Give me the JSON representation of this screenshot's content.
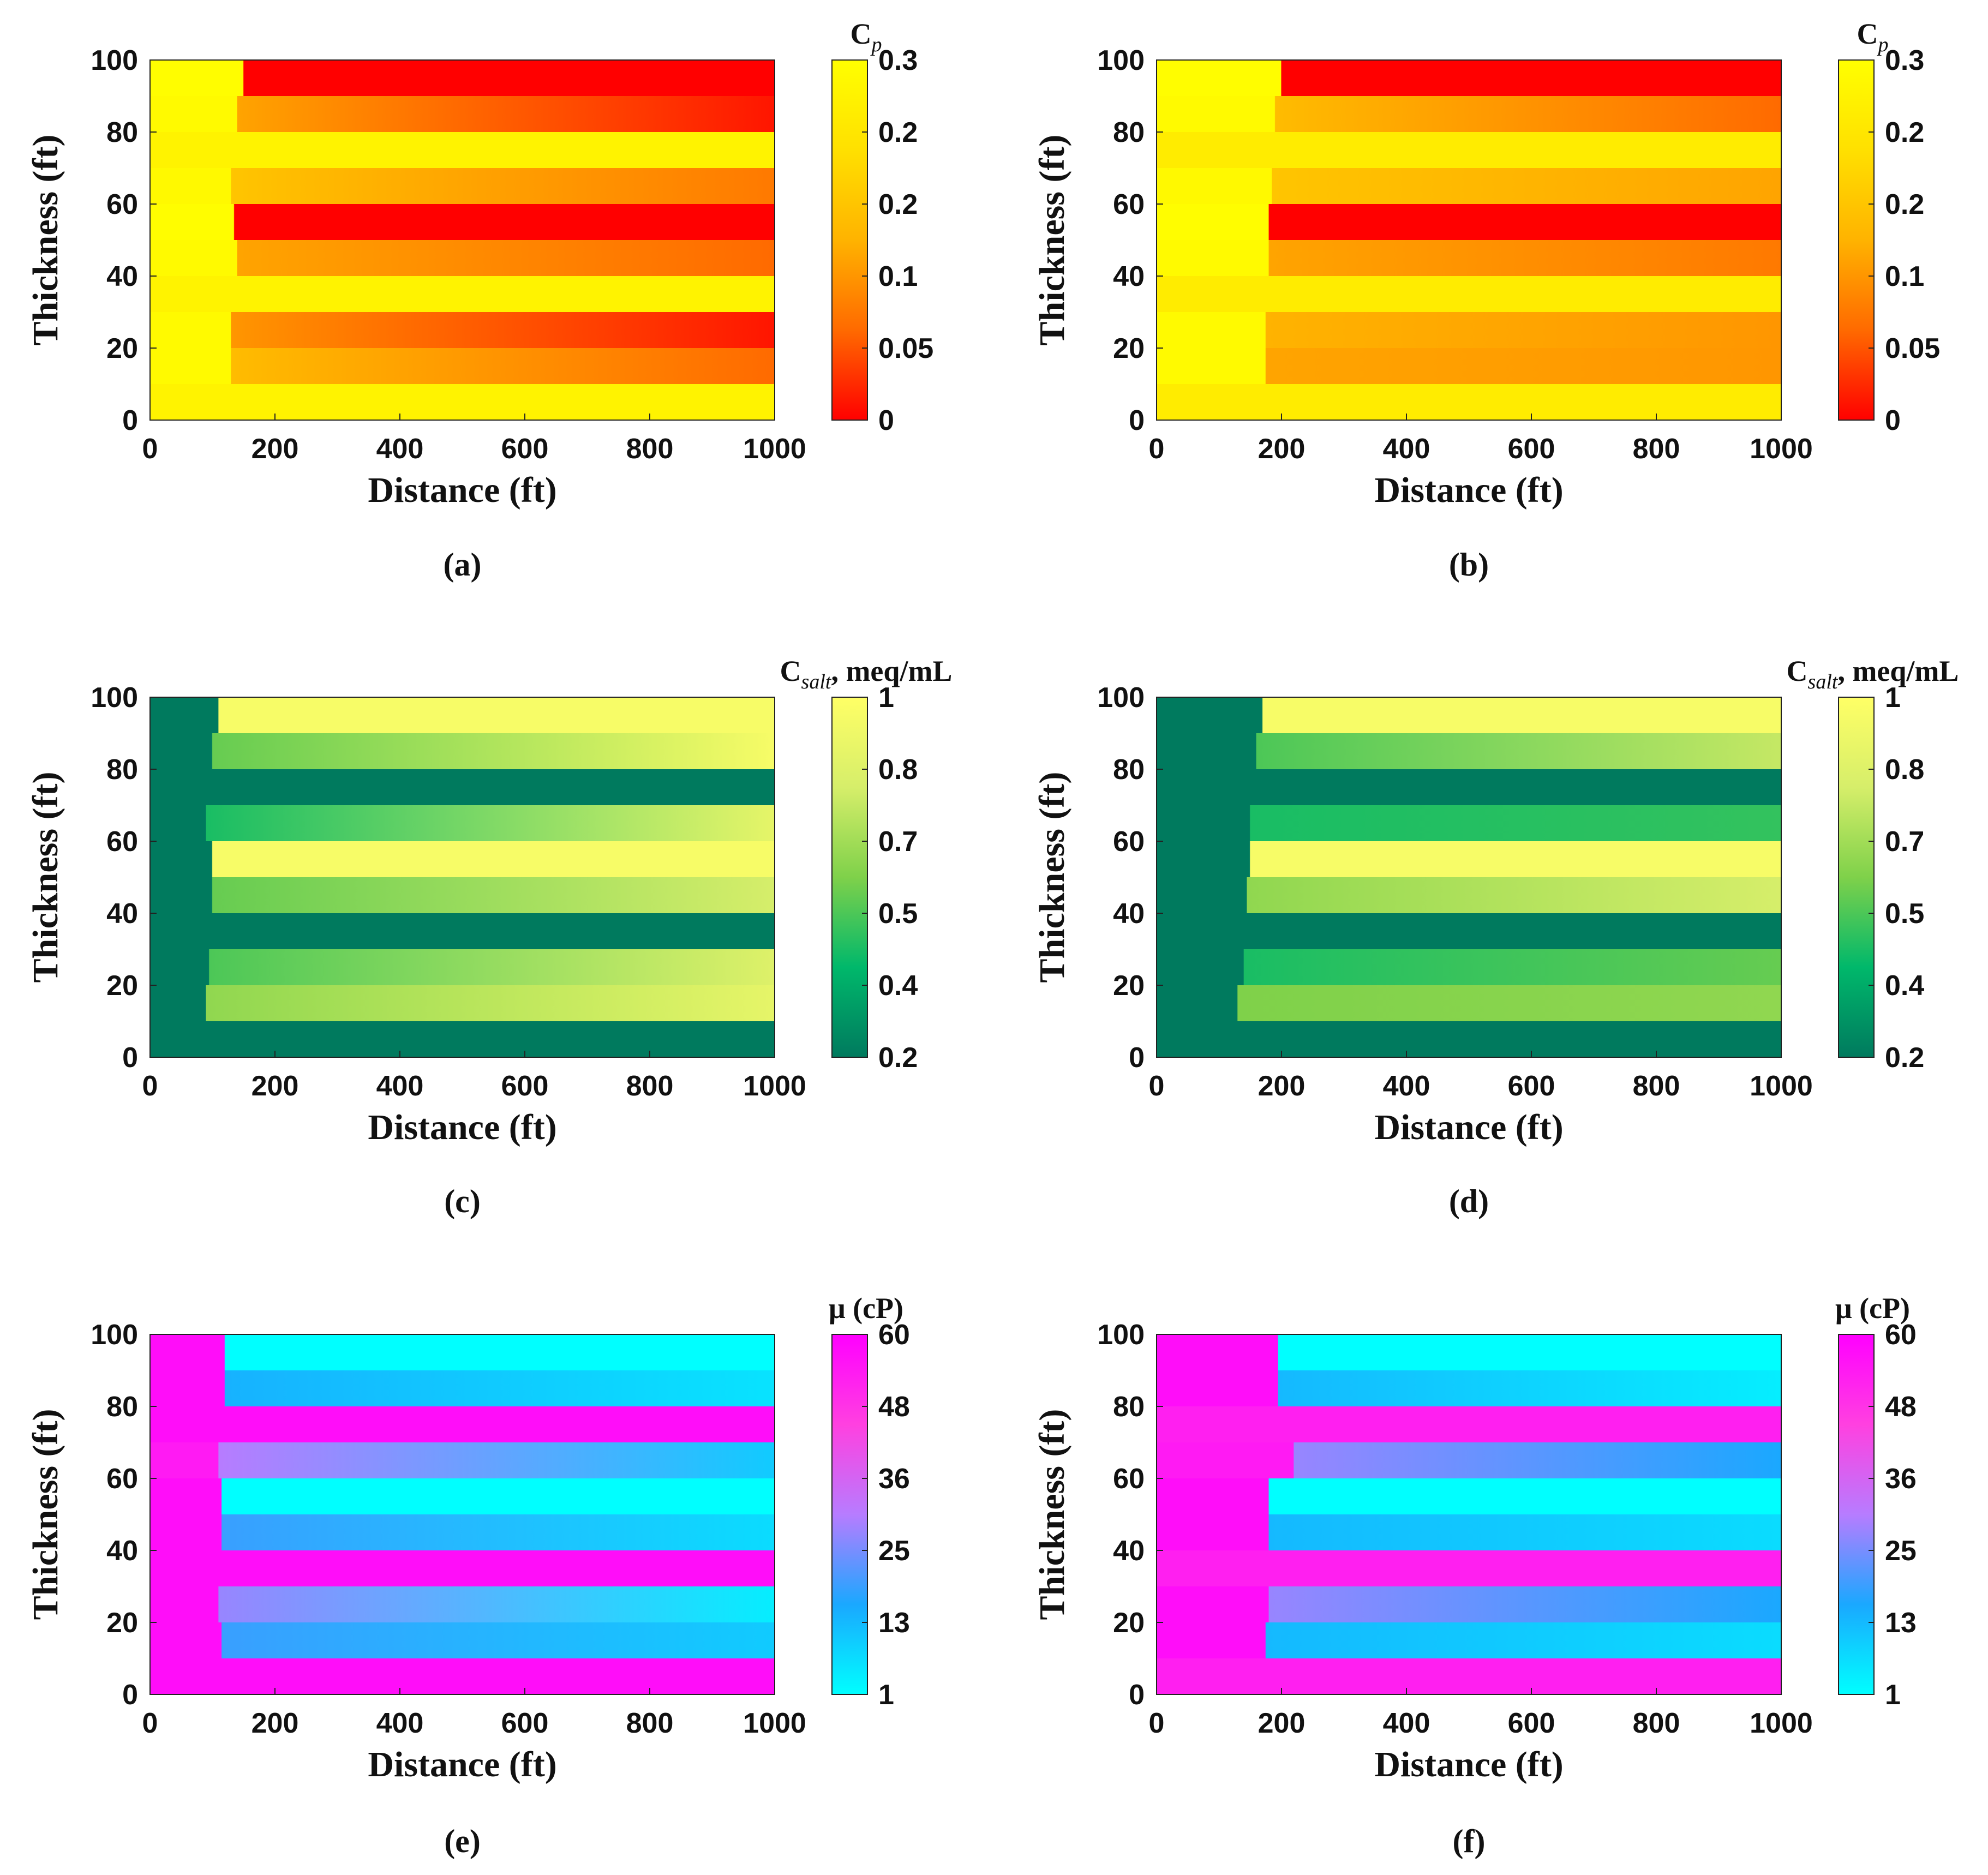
{
  "figure": {
    "panels_layout": "3 rows x 2 columns",
    "x_axis_label": "Distance (ft)",
    "y_axis_label": "Thickness (ft)",
    "x_tick_labels": [
      "0",
      "200",
      "400",
      "600",
      "800",
      "1000"
    ],
    "y_tick_labels": [
      "0",
      "20",
      "40",
      "60",
      "80",
      "100"
    ]
  },
  "colors": {
    "cp": [
      "#ff0000",
      "#ff6a00",
      "#ffb300",
      "#ffe000",
      "#ffff00"
    ],
    "salt": [
      "#007a5e",
      "#00b86b",
      "#7fd14a",
      "#d6ee6a",
      "#ffff66"
    ],
    "visc": [
      "#00ffff",
      "#1aa8ff",
      "#b77cff",
      "#ff40e0",
      "#ff00ff"
    ]
  },
  "chart_data": [
    {
      "id": "a",
      "caption": "(a)",
      "type": "heatmap",
      "title": "",
      "colorbar_title": "C",
      "colorbar_sub": "p",
      "colorbar_rest": "",
      "colorbar_ticks": [
        "0",
        "0.05",
        "0.1",
        "0.2",
        "0.2",
        "0.3"
      ],
      "scale": "cp",
      "xlabel": "Distance (ft)",
      "ylabel": "Thickness (ft)",
      "xlim": [
        0,
        1000
      ],
      "ylim": [
        0,
        100
      ],
      "layers": [
        {
          "y0": 90,
          "y1": 100,
          "front": 150,
          "behind": 0.98,
          "start": 0.0,
          "end": 0.0
        },
        {
          "y0": 80,
          "y1": 90,
          "front": 140,
          "behind": 0.96,
          "start": 0.45,
          "end": 0.05
        },
        {
          "y0": 70,
          "y1": 80,
          "front": 0,
          "behind": 0.9,
          "start": 0.9,
          "end": 0.9
        },
        {
          "y0": 60,
          "y1": 70,
          "front": 130,
          "behind": 0.95,
          "start": 0.6,
          "end": 0.3
        },
        {
          "y0": 50,
          "y1": 60,
          "front": 135,
          "behind": 0.98,
          "start": 0.0,
          "end": 0.0
        },
        {
          "y0": 40,
          "y1": 50,
          "front": 140,
          "behind": 0.96,
          "start": 0.45,
          "end": 0.25
        },
        {
          "y0": 30,
          "y1": 40,
          "front": 0,
          "behind": 0.9,
          "start": 0.9,
          "end": 0.9
        },
        {
          "y0": 20,
          "y1": 30,
          "front": 130,
          "behind": 0.96,
          "start": 0.4,
          "end": 0.05
        },
        {
          "y0": 10,
          "y1": 20,
          "front": 130,
          "behind": 0.96,
          "start": 0.55,
          "end": 0.25
        },
        {
          "y0": 0,
          "y1": 10,
          "front": 0,
          "behind": 0.9,
          "start": 0.9,
          "end": 0.9
        }
      ]
    },
    {
      "id": "b",
      "caption": "(b)",
      "type": "heatmap",
      "title": "",
      "colorbar_title": "C",
      "colorbar_sub": "p",
      "colorbar_rest": "",
      "colorbar_ticks": [
        "0",
        "0.05",
        "0.1",
        "0.2",
        "0.2",
        "0.3"
      ],
      "scale": "cp",
      "xlabel": "Distance (ft)",
      "ylabel": "Thickness (ft)",
      "xlim": [
        0,
        1000
      ],
      "ylim": [
        0,
        100
      ],
      "layers": [
        {
          "y0": 90,
          "y1": 100,
          "front": 200,
          "behind": 0.98,
          "start": 0.0,
          "end": 0.0
        },
        {
          "y0": 80,
          "y1": 90,
          "front": 190,
          "behind": 0.96,
          "start": 0.55,
          "end": 0.25
        },
        {
          "y0": 70,
          "y1": 80,
          "front": 0,
          "behind": 0.85,
          "start": 0.85,
          "end": 0.85
        },
        {
          "y0": 60,
          "y1": 70,
          "front": 185,
          "behind": 0.95,
          "start": 0.6,
          "end": 0.45
        },
        {
          "y0": 50,
          "y1": 60,
          "front": 180,
          "behind": 0.98,
          "start": 0.0,
          "end": 0.0
        },
        {
          "y0": 40,
          "y1": 50,
          "front": 180,
          "behind": 0.96,
          "start": 0.45,
          "end": 0.3
        },
        {
          "y0": 30,
          "y1": 40,
          "front": 0,
          "behind": 0.85,
          "start": 0.85,
          "end": 0.85
        },
        {
          "y0": 20,
          "y1": 30,
          "front": 175,
          "behind": 0.96,
          "start": 0.5,
          "end": 0.4
        },
        {
          "y0": 10,
          "y1": 20,
          "front": 175,
          "behind": 0.96,
          "start": 0.45,
          "end": 0.4
        },
        {
          "y0": 0,
          "y1": 10,
          "front": 0,
          "behind": 0.85,
          "start": 0.85,
          "end": 0.85
        }
      ]
    },
    {
      "id": "c",
      "caption": "(c)",
      "type": "heatmap",
      "title": "",
      "colorbar_title": "C",
      "colorbar_sub": "salt",
      "colorbar_rest": ", meq/mL",
      "colorbar_ticks": [
        "0.2",
        "0.4",
        "0.5",
        "0.7",
        "0.8",
        "1"
      ],
      "scale": "salt",
      "xlabel": "Distance (ft)",
      "ylabel": "Thickness (ft)",
      "xlim": [
        0,
        1000
      ],
      "ylim": [
        0,
        100
      ],
      "layers": [
        {
          "y0": 90,
          "y1": 100,
          "front": 110,
          "behind": 0.0,
          "start": 0.95,
          "end": 0.95
        },
        {
          "y0": 80,
          "y1": 90,
          "front": 100,
          "behind": 0.0,
          "start": 0.45,
          "end": 0.95
        },
        {
          "y0": 70,
          "y1": 80,
          "front": 0,
          "behind": 0.0,
          "start": 0.0,
          "end": 0.0
        },
        {
          "y0": 60,
          "y1": 70,
          "front": 90,
          "behind": 0.0,
          "start": 0.3,
          "end": 0.85
        },
        {
          "y0": 50,
          "y1": 60,
          "front": 100,
          "behind": 0.0,
          "start": 0.95,
          "end": 0.95
        },
        {
          "y0": 40,
          "y1": 50,
          "front": 100,
          "behind": 0.0,
          "start": 0.45,
          "end": 0.75
        },
        {
          "y0": 30,
          "y1": 40,
          "front": 0,
          "behind": 0.0,
          "start": 0.0,
          "end": 0.0
        },
        {
          "y0": 20,
          "y1": 30,
          "front": 95,
          "behind": 0.0,
          "start": 0.4,
          "end": 0.8
        },
        {
          "y0": 10,
          "y1": 20,
          "front": 90,
          "behind": 0.0,
          "start": 0.55,
          "end": 0.85
        },
        {
          "y0": 0,
          "y1": 10,
          "front": 0,
          "behind": 0.0,
          "start": 0.0,
          "end": 0.0
        }
      ]
    },
    {
      "id": "d",
      "caption": "(d)",
      "type": "heatmap",
      "title": "",
      "colorbar_title": "C",
      "colorbar_sub": "salt",
      "colorbar_rest": ", meq/mL",
      "colorbar_ticks": [
        "0.2",
        "0.4",
        "0.5",
        "0.7",
        "0.8",
        "1"
      ],
      "scale": "salt",
      "xlabel": "Distance (ft)",
      "ylabel": "Thickness (ft)",
      "xlim": [
        0,
        1000
      ],
      "ylim": [
        0,
        100
      ],
      "layers": [
        {
          "y0": 90,
          "y1": 100,
          "front": 170,
          "behind": 0.0,
          "start": 0.95,
          "end": 0.95
        },
        {
          "y0": 80,
          "y1": 90,
          "front": 160,
          "behind": 0.0,
          "start": 0.4,
          "end": 0.7
        },
        {
          "y0": 70,
          "y1": 80,
          "front": 0,
          "behind": 0.0,
          "start": 0.0,
          "end": 0.0
        },
        {
          "y0": 60,
          "y1": 70,
          "front": 150,
          "behind": 0.0,
          "start": 0.3,
          "end": 0.35
        },
        {
          "y0": 50,
          "y1": 60,
          "front": 150,
          "behind": 0.0,
          "start": 0.95,
          "end": 0.95
        },
        {
          "y0": 40,
          "y1": 50,
          "front": 145,
          "behind": 0.0,
          "start": 0.55,
          "end": 0.75
        },
        {
          "y0": 30,
          "y1": 40,
          "front": 0,
          "behind": 0.0,
          "start": 0.0,
          "end": 0.0
        },
        {
          "y0": 20,
          "y1": 30,
          "front": 140,
          "behind": 0.0,
          "start": 0.3,
          "end": 0.45
        },
        {
          "y0": 10,
          "y1": 20,
          "front": 130,
          "behind": 0.0,
          "start": 0.5,
          "end": 0.55
        },
        {
          "y0": 0,
          "y1": 10,
          "front": 0,
          "behind": 0.0,
          "start": 0.0,
          "end": 0.0
        }
      ]
    },
    {
      "id": "e",
      "caption": "(e)",
      "type": "heatmap",
      "title": "",
      "colorbar_title": "μ",
      "colorbar_sub": "",
      "colorbar_rest": " (cP)",
      "colorbar_ticks": [
        "1",
        "13",
        "25",
        "36",
        "48",
        "60"
      ],
      "scale": "visc",
      "xlabel": "Distance (ft)",
      "ylabel": "Thickness (ft)",
      "xlim": [
        0,
        1000
      ],
      "ylim": [
        0,
        100
      ],
      "layers": [
        {
          "y0": 90,
          "y1": 100,
          "front": 120,
          "behind": 0.95,
          "start": 0.0,
          "end": 0.0
        },
        {
          "y0": 80,
          "y1": 90,
          "front": 120,
          "behind": 0.95,
          "start": 0.22,
          "end": 0.08
        },
        {
          "y0": 70,
          "y1": 80,
          "front": 0,
          "behind": 0.95,
          "start": 0.95,
          "end": 0.95
        },
        {
          "y0": 60,
          "y1": 70,
          "front": 110,
          "behind": 0.9,
          "start": 0.5,
          "end": 0.15
        },
        {
          "y0": 50,
          "y1": 60,
          "front": 115,
          "behind": 0.95,
          "start": 0.0,
          "end": 0.0
        },
        {
          "y0": 40,
          "y1": 50,
          "front": 115,
          "behind": 0.95,
          "start": 0.3,
          "end": 0.1
        },
        {
          "y0": 30,
          "y1": 40,
          "front": 0,
          "behind": 0.95,
          "start": 0.95,
          "end": 0.95
        },
        {
          "y0": 20,
          "y1": 30,
          "front": 110,
          "behind": 0.95,
          "start": 0.45,
          "end": 0.05
        },
        {
          "y0": 10,
          "y1": 20,
          "front": 115,
          "behind": 0.95,
          "start": 0.3,
          "end": 0.15
        },
        {
          "y0": 0,
          "y1": 10,
          "front": 0,
          "behind": 0.95,
          "start": 0.95,
          "end": 0.95
        }
      ]
    },
    {
      "id": "f",
      "caption": "(f)",
      "type": "heatmap",
      "title": "",
      "colorbar_title": "μ",
      "colorbar_sub": "",
      "colorbar_rest": " (cP)",
      "colorbar_ticks": [
        "1",
        "13",
        "25",
        "36",
        "48",
        "60"
      ],
      "scale": "visc",
      "xlabel": "Distance (ft)",
      "ylabel": "Thickness (ft)",
      "xlim": [
        0,
        1000
      ],
      "ylim": [
        0,
        100
      ],
      "layers": [
        {
          "y0": 90,
          "y1": 100,
          "front": 195,
          "behind": 0.95,
          "start": 0.0,
          "end": 0.0
        },
        {
          "y0": 80,
          "y1": 90,
          "front": 195,
          "behind": 0.95,
          "start": 0.2,
          "end": 0.05
        },
        {
          "y0": 70,
          "y1": 80,
          "front": 0,
          "behind": 0.88,
          "start": 0.88,
          "end": 0.88
        },
        {
          "y0": 60,
          "y1": 70,
          "front": 220,
          "behind": 0.9,
          "start": 0.45,
          "end": 0.25
        },
        {
          "y0": 50,
          "y1": 60,
          "front": 180,
          "behind": 0.95,
          "start": 0.0,
          "end": 0.0
        },
        {
          "y0": 40,
          "y1": 50,
          "front": 180,
          "behind": 0.95,
          "start": 0.2,
          "end": 0.1
        },
        {
          "y0": 30,
          "y1": 40,
          "front": 0,
          "behind": 0.88,
          "start": 0.88,
          "end": 0.88
        },
        {
          "y0": 20,
          "y1": 30,
          "front": 180,
          "behind": 0.95,
          "start": 0.45,
          "end": 0.25
        },
        {
          "y0": 10,
          "y1": 20,
          "front": 175,
          "behind": 0.95,
          "start": 0.2,
          "end": 0.1
        },
        {
          "y0": 0,
          "y1": 10,
          "front": 0,
          "behind": 0.88,
          "start": 0.88,
          "end": 0.88
        }
      ]
    }
  ]
}
